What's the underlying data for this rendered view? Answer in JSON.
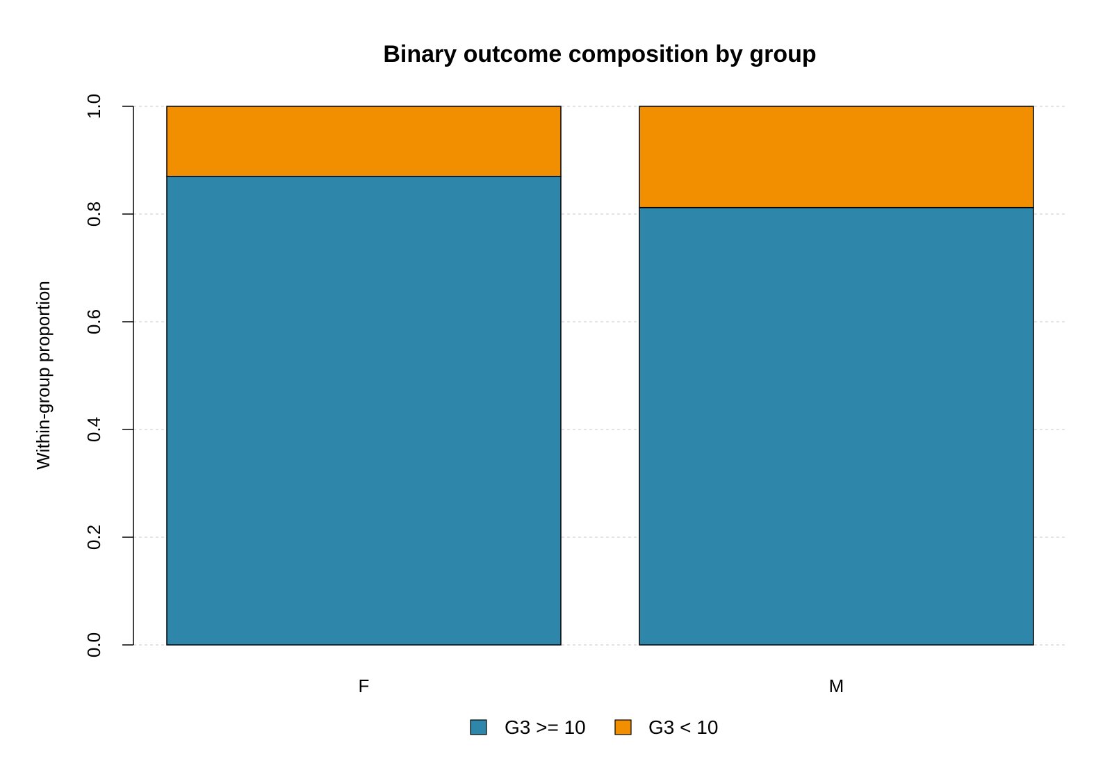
{
  "chart_data": {
    "type": "bar",
    "stacked": true,
    "title": "Binary outcome composition by group",
    "xlabel": "",
    "ylabel": "Within-group proportion",
    "categories": [
      "F",
      "M"
    ],
    "series": [
      {
        "name": "G3 >= 10",
        "values": [
          0.87,
          0.812
        ],
        "color": "#2e86ab"
      },
      {
        "name": "G3 < 10",
        "values": [
          0.13,
          0.188
        ],
        "color": "#f18f01"
      }
    ],
    "ylim": [
      0,
      1
    ],
    "yticks": [
      "0.0",
      "0.2",
      "0.4",
      "0.6",
      "0.8",
      "1.0"
    ],
    "ytick_values": [
      0,
      0.2,
      0.4,
      0.6,
      0.8,
      1.0
    ],
    "grid": true,
    "legend_position": "bottom"
  }
}
